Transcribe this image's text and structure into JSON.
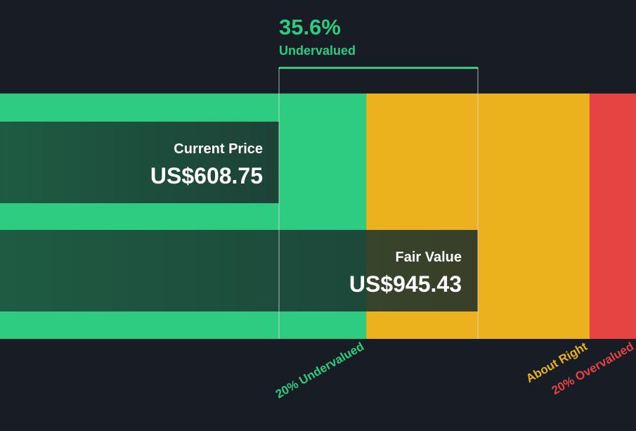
{
  "chart_data": {
    "type": "valuation",
    "annotation": "35.6%",
    "annotation_sub": "Undervalued",
    "categories": [
      "Current Price",
      "Fair Value"
    ],
    "values": [
      608.75,
      945.43
    ],
    "value_labels": [
      "US$608.75",
      "US$945.43"
    ],
    "xlim": [
      136.4,
      1213.1
    ],
    "zones": [
      {
        "label": "20% Undervalued",
        "color": "#2ecc80",
        "start": 136.4,
        "end": 756.34
      },
      {
        "label": "About Right",
        "color": "#ebb21d",
        "start": 756.34,
        "end": 1134.52
      },
      {
        "label": "20% Overvalued",
        "color": "#e54443",
        "start": 1134.52,
        "end": 1213.1
      }
    ]
  }
}
